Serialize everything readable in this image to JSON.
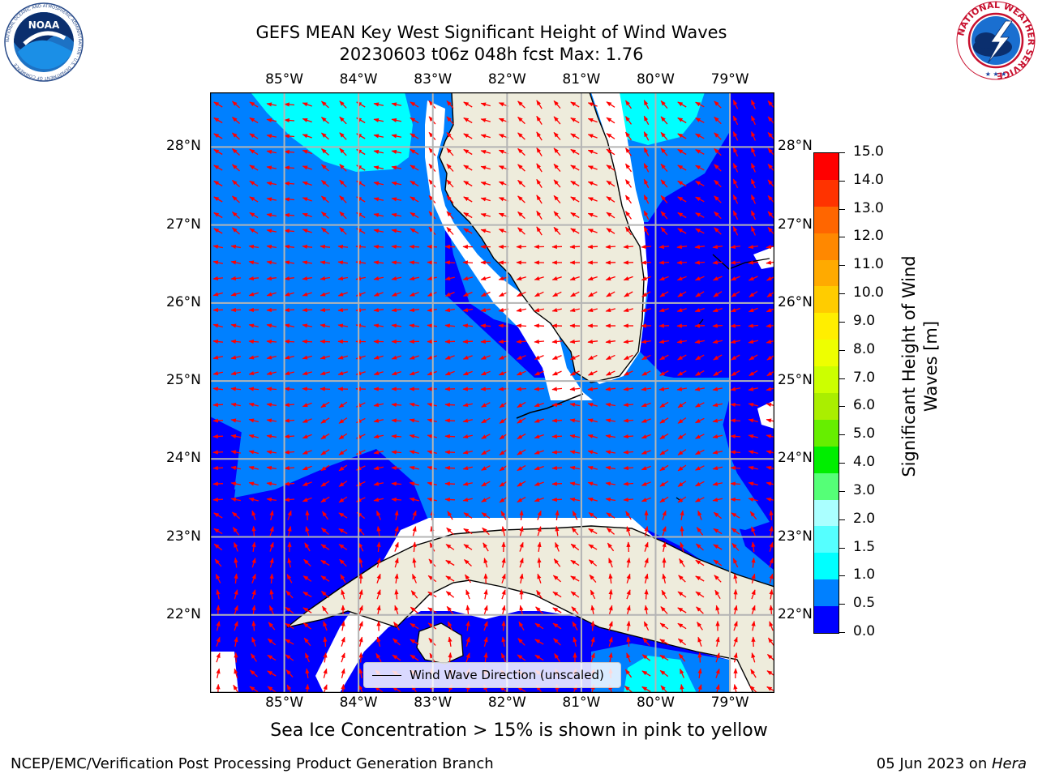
{
  "title": {
    "line1": "GEFS MEAN Key West Significant Height of Wind Waves",
    "line2": "20230603 t06z 048h fcst   Max: 1.76"
  },
  "logos": {
    "noaa": {
      "text": "NOAA",
      "ring_text": "NATIONAL OCEANIC AND ATMOSPHERIC ADMINISTRATION · U.S. DEPARTMENT OF COMMERCE"
    },
    "nws": {
      "ring_text": "NATIONAL WEATHER SERVICE"
    }
  },
  "map": {
    "lon_ticks": [
      "85°W",
      "84°W",
      "83°W",
      "82°W",
      "81°W",
      "80°W",
      "79°W"
    ],
    "lat_ticks": [
      "28°N",
      "27°N",
      "26°N",
      "25°N",
      "24°N",
      "23°N",
      "22°N"
    ],
    "lon_range": [
      -86.0,
      -78.4
    ],
    "lat_range": [
      21.0,
      28.7
    ],
    "grid": true,
    "colors": {
      "land": "#eeecdc",
      "wave_0_0.5": "#0000ff",
      "wave_0.5_1.0": "#0080ff",
      "wave_1.0_1.5": "#00ffff",
      "arrow": "#ff0000",
      "grid": "#b4b4b4"
    }
  },
  "legend": {
    "label": "Wind Wave Direction (unscaled)"
  },
  "colorbar": {
    "label_line1": "Significant Height of Wind",
    "label_line2": "Waves [m]",
    "ticks": [
      "15.0",
      "14.0",
      "13.0",
      "12.0",
      "11.0",
      "10.0",
      "9.0",
      "8.0",
      "7.0",
      "6.0",
      "5.0",
      "4.0",
      "3.0",
      "2.0",
      "1.5",
      "1.0",
      "0.5",
      "0.0"
    ],
    "colors": [
      "#ff0000",
      "#ff3300",
      "#ff6600",
      "#ff8800",
      "#ffaa00",
      "#ffcc00",
      "#ffee00",
      "#eeff00",
      "#ccff00",
      "#aaee00",
      "#66ee00",
      "#00ee00",
      "#55ff77",
      "#aaffff",
      "#55ffff",
      "#00ffff",
      "#0080ff",
      "#0000ff"
    ]
  },
  "note": "Sea Ice Concentration > 15% is shown in pink to yellow",
  "footer": {
    "left": "NCEP/EMC/Verification Post Processing Product Generation Branch",
    "right_date": "05 Jun 2023 on ",
    "right_host": "Hera"
  }
}
